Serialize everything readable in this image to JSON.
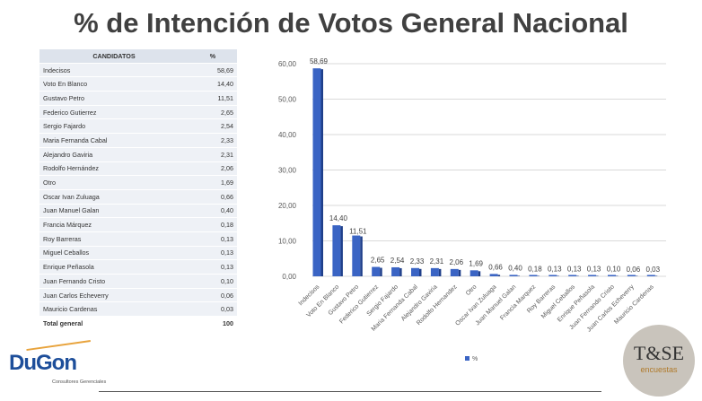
{
  "title": "% de Intención de Votos General Nacional",
  "table": {
    "headers": [
      "CANDIDATOS",
      "%"
    ],
    "rows": [
      [
        "Indecisos",
        "58,69"
      ],
      [
        "Voto En Blanco",
        "14,40"
      ],
      [
        "Gustavo Petro",
        "11,51"
      ],
      [
        "Federico Gutierrez",
        "2,65"
      ],
      [
        "Sergio Fajardo",
        "2,54"
      ],
      [
        "Maria Fernanda Cabal",
        "2,33"
      ],
      [
        "Alejandro Gaviria",
        "2,31"
      ],
      [
        "Rodolfo Hernández",
        "2,06"
      ],
      [
        "Otro",
        "1,69"
      ],
      [
        "Oscar Ivan Zuluaga",
        "0,66"
      ],
      [
        "Juan Manuel Galan",
        "0,40"
      ],
      [
        "Francia Márquez",
        "0,18"
      ],
      [
        "Roy Barreras",
        "0,13"
      ],
      [
        "Miguel Ceballos",
        "0,13"
      ],
      [
        "Enrique Peñasola",
        "0,13"
      ],
      [
        "Juan Fernando Cristo",
        "0,10"
      ],
      [
        "Juan Carlos Echeverry",
        "0,06"
      ],
      [
        "Mauricio Cardenas",
        "0,03"
      ]
    ],
    "total": [
      "Total general",
      "100"
    ]
  },
  "chart_data": {
    "type": "bar",
    "title": "",
    "categories": [
      "Indecisos",
      "Voto En Blanco",
      "Gustavo Petro",
      "Federico Gutierrez",
      "Sergio Fajardo",
      "Maria Fernanda Cabal",
      "Alejandro Gaviria",
      "Rodolfo Hernandez",
      "Otro",
      "Oscar Ivan Zuluaga",
      "Juan Manuel Galan",
      "Francia Marquez",
      "Roy Barreras",
      "Miguel Ceballos",
      "Enrique Peñasola",
      "Juan Fernando Cristo",
      "Juan Carlos Echeverry",
      "Mauricio Cardenas"
    ],
    "series": [
      {
        "name": "%",
        "values": [
          58.69,
          14.4,
          11.51,
          2.65,
          2.54,
          2.33,
          2.31,
          2.06,
          1.69,
          0.66,
          0.4,
          0.18,
          0.13,
          0.13,
          0.13,
          0.1,
          0.06,
          0.03
        ]
      }
    ],
    "data_labels": [
      "58,69",
      "14,40",
      "11,51",
      "2,65",
      "2,54",
      "2,33",
      "2,31",
      "2,06",
      "1,69",
      "0,66",
      "0,40",
      "0,18",
      "0,13",
      "0,13",
      "0,13",
      "0,10",
      "0,06",
      "0,03"
    ],
    "yticks": [
      "0,00",
      "10,00",
      "20,00",
      "30,00",
      "40,00",
      "50,00",
      "60,00"
    ],
    "ylim": [
      0,
      60
    ],
    "xlabel": "",
    "ylabel": "",
    "grid": true,
    "legend": "bottom",
    "color": "#3a64c4"
  },
  "logos": {
    "left": "DuGon",
    "left_sub": "Consultores Gerenciales",
    "right": "T&SE",
    "right_sub": "encuestas"
  }
}
